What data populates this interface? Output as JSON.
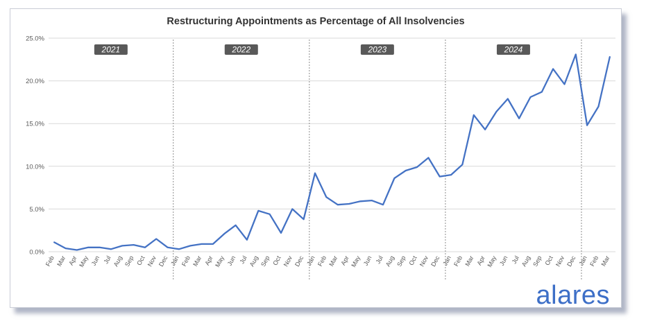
{
  "chart_data": {
    "type": "line",
    "title": "Restructuring Appointments as Percentage of All Insolvencies",
    "xlabel": "",
    "ylabel": "",
    "ylim": [
      0,
      25
    ],
    "y_ticks": [
      "0.0%",
      "5.0%",
      "10.0%",
      "15.0%",
      "20.0%",
      "25.0%"
    ],
    "grid": "horizontal",
    "x": [
      "Feb",
      "Mar",
      "Apr",
      "May",
      "Jun",
      "Jul",
      "Aug",
      "Sep",
      "Oct",
      "Nov",
      "Dec",
      "Jan",
      "Feb",
      "Mar",
      "Apr",
      "May",
      "Jun",
      "Jul",
      "Aug",
      "Sep",
      "Oct",
      "Nov",
      "Dec",
      "Jan",
      "Feb",
      "Mar",
      "Apr",
      "May",
      "Jun",
      "Jul",
      "Aug",
      "Sep",
      "Oct",
      "Nov",
      "Dec",
      "Jan",
      "Feb",
      "Mar",
      "Apr",
      "May",
      "Jun",
      "Jul",
      "Aug",
      "Sep",
      "Oct",
      "Nov",
      "Dec",
      "Jan",
      "Feb",
      "Mar"
    ],
    "series": [
      {
        "values": [
          1.1,
          0.4,
          0.2,
          0.5,
          0.5,
          0.3,
          0.7,
          0.8,
          0.5,
          1.5,
          0.5,
          0.3,
          0.7,
          0.9,
          0.9,
          2.1,
          3.1,
          1.4,
          4.8,
          4.4,
          2.2,
          5.0,
          3.8,
          9.2,
          6.4,
          5.5,
          5.6,
          5.9,
          6.0,
          5.5,
          8.6,
          9.5,
          9.9,
          11.0,
          8.8,
          9.0,
          10.2,
          16.0,
          14.3,
          16.4,
          17.9,
          15.6,
          18.1,
          18.7,
          21.4,
          19.6,
          23.1,
          14.8,
          17.0,
          22.8
        ],
        "color": "#4472c4"
      }
    ],
    "year_bands": [
      {
        "label": "2021",
        "start": 0,
        "end": 10
      },
      {
        "label": "2022",
        "start": 11,
        "end": 22
      },
      {
        "label": "2023",
        "start": 23,
        "end": 34
      },
      {
        "label": "2024",
        "start": 35,
        "end": 46
      }
    ],
    "year_separators_after": [
      10,
      22,
      34,
      46
    ]
  },
  "branding": {
    "logo_text": "alares",
    "logo_color": "#3d6fc7"
  },
  "colors": {
    "line": "#4472c4",
    "grid": "#d9d9d9",
    "year_label_bg": "#595959",
    "year_label_text": "#ffffff"
  }
}
